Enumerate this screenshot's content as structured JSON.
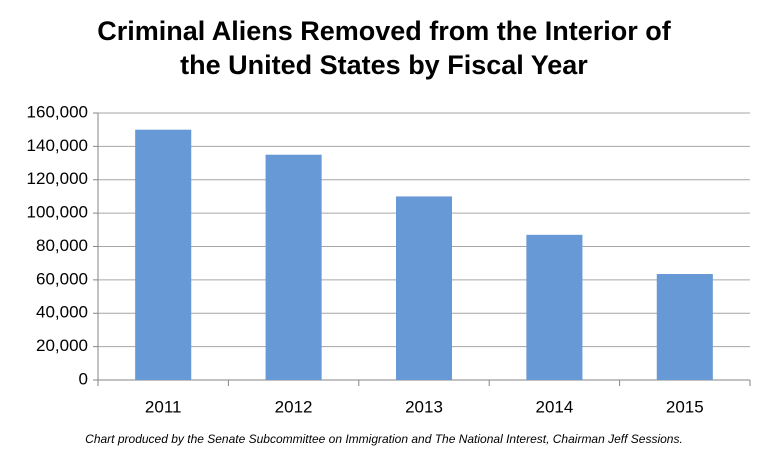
{
  "chart_data": {
    "type": "bar",
    "title": "Criminal Aliens Removed from the Interior of the United States by Fiscal Year",
    "footnote": "Chart produced by the Senate Subcommittee on Immigration and The National Interest, Chairman Jeff Sessions.",
    "categories": [
      "2011",
      "2012",
      "2013",
      "2014",
      "2015"
    ],
    "values": [
      150000,
      135000,
      110000,
      87000,
      63500
    ],
    "color": "#6699d6",
    "ylim": [
      0,
      160000
    ],
    "yticks": [
      0,
      {
        "value": 20000,
        "label": "20,000"
      },
      {
        "value": 40000,
        "label": "40,000"
      },
      {
        "value": 60000,
        "label": "60,000"
      },
      {
        "value": 80000,
        "label": "80,000"
      },
      {
        "value": 100000,
        "label": "100,000"
      },
      {
        "value": 120000,
        "label": "120,000"
      },
      {
        "value": 140000,
        "label": "140,000"
      },
      {
        "value": 160000,
        "label": "160,000"
      }
    ],
    "grid": true
  }
}
